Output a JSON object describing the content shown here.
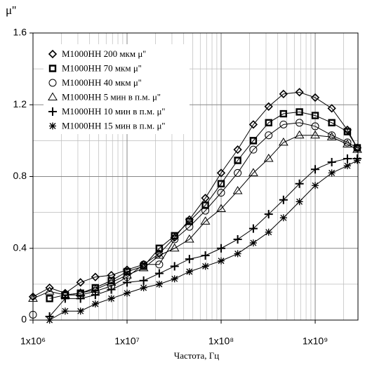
{
  "chart_data": {
    "type": "line",
    "y_label": "μ''",
    "x_label": "Частота, Гц",
    "xscale": "log",
    "xlim": [
      1000000,
      2850000000
    ],
    "xticks": [
      {
        "value": 1000000,
        "label": "1x10⁶"
      },
      {
        "value": 10000000,
        "label": "1x10⁷"
      },
      {
        "value": 100000000,
        "label": "1x10⁸"
      },
      {
        "value": 1000000000,
        "label": "1x10⁹"
      }
    ],
    "ylim": [
      0,
      1.6
    ],
    "yticks": [
      0,
      0.4,
      0.8,
      1.2,
      1.6
    ],
    "grid": true,
    "legend": "upper left",
    "x": [
      1000000,
      1500000,
      2200000,
      3200000,
      4600000,
      6800000,
      10000000,
      15000000,
      22000000,
      32000000,
      46000000,
      68000000,
      100000000,
      150000000,
      220000000,
      320000000,
      460000000,
      680000000,
      1000000000,
      1500000000,
      2200000000,
      2800000000
    ],
    "series": [
      {
        "name": "М1000НН 200 мкм μ''",
        "color": "#000000",
        "marker": "diamond",
        "values": [
          0.13,
          0.18,
          0.15,
          0.21,
          0.24,
          0.25,
          0.28,
          0.31,
          0.37,
          0.46,
          0.56,
          0.68,
          0.82,
          0.95,
          1.09,
          1.19,
          1.26,
          1.27,
          1.24,
          1.18,
          1.06,
          0.96
        ]
      },
      {
        "name": "М1000НН 70 мкм μ''",
        "color": "#000000",
        "marker": "square",
        "values": [
          null,
          0.12,
          0.14,
          0.15,
          0.18,
          0.22,
          0.27,
          0.3,
          0.4,
          0.47,
          0.55,
          0.64,
          0.76,
          0.89,
          1.0,
          1.1,
          1.15,
          1.16,
          1.14,
          1.1,
          1.05,
          0.96
        ]
      },
      {
        "name": "М1000НН 40 мкм μ''",
        "color": "#000000",
        "marker": "circle",
        "values": [
          0.03,
          null,
          0.14,
          0.14,
          0.16,
          0.19,
          0.24,
          0.31,
          0.31,
          0.45,
          0.52,
          0.61,
          0.71,
          0.82,
          0.95,
          1.03,
          1.09,
          1.1,
          1.08,
          1.03,
          0.99,
          0.96
        ]
      },
      {
        "name": "М1000НН 5 мин в п.м. μ''",
        "color": "#000000",
        "marker": "triangle",
        "values": [
          0.12,
          0.16,
          0.14,
          0.15,
          0.17,
          0.21,
          0.25,
          0.29,
          0.36,
          0.4,
          0.45,
          0.55,
          0.62,
          0.72,
          0.82,
          0.9,
          0.99,
          1.03,
          1.03,
          1.02,
          0.98,
          0.95
        ]
      },
      {
        "name": "М1000НН 10 мин в п.м. μ''",
        "color": "#000000",
        "marker": "plus",
        "values": [
          null,
          0.02,
          0.12,
          0.12,
          0.14,
          0.17,
          0.21,
          0.22,
          0.26,
          0.3,
          0.34,
          0.36,
          0.4,
          0.45,
          0.51,
          0.59,
          0.67,
          0.76,
          0.84,
          0.88,
          0.9,
          0.9
        ]
      },
      {
        "name": "М1000НН 15 мин в п.м. μ''",
        "color": "#000000",
        "marker": "asterisk",
        "values": [
          null,
          0.0,
          0.05,
          0.05,
          0.09,
          0.12,
          0.15,
          0.18,
          0.2,
          0.23,
          0.27,
          0.3,
          0.33,
          0.37,
          0.43,
          0.49,
          0.57,
          0.66,
          0.75,
          0.82,
          0.86,
          0.89
        ]
      }
    ]
  }
}
